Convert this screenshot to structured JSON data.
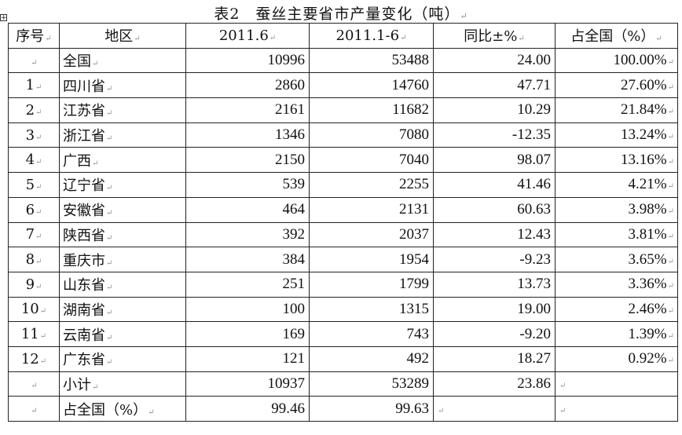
{
  "title": "表2　蚕丝主要省市产量变化（吨）",
  "table": {
    "headers": [
      "序号",
      "地区",
      "2011.6",
      "2011.1-6",
      "同比±%",
      "占全国（%）"
    ],
    "rows": [
      [
        "",
        "全国",
        "10996",
        "53488",
        "24.00",
        "100.00%"
      ],
      [
        "1",
        "四川省",
        "2860",
        "14760",
        "47.71",
        "27.60%"
      ],
      [
        "2",
        "江苏省",
        "2161",
        "11682",
        "10.29",
        "21.84%"
      ],
      [
        "3",
        "浙江省",
        "1346",
        "7080",
        "-12.35",
        "13.24%"
      ],
      [
        "4",
        "广西",
        "2150",
        "7040",
        "98.07",
        "13.16%"
      ],
      [
        "5",
        "辽宁省",
        "539",
        "2255",
        "41.46",
        "4.21%"
      ],
      [
        "6",
        "安徽省",
        "464",
        "2131",
        "60.63",
        "3.98%"
      ],
      [
        "7",
        "陕西省",
        "392",
        "2037",
        "12.43",
        "3.81%"
      ],
      [
        "8",
        "重庆市",
        "384",
        "1954",
        "-9.23",
        "3.65%"
      ],
      [
        "9",
        "山东省",
        "251",
        "1799",
        "13.73",
        "3.36%"
      ],
      [
        "10",
        "湖南省",
        "100",
        "1315",
        "19.00",
        "2.46%"
      ],
      [
        "11",
        "云南省",
        "169",
        "743",
        "-9.20",
        "1.39%"
      ],
      [
        "12",
        "广东省",
        "121",
        "492",
        "18.27",
        "0.92%"
      ],
      [
        "",
        "小计",
        "10937",
        "53289",
        "23.86",
        ""
      ],
      [
        "",
        "占全国（%）",
        "99.46",
        "99.63",
        "",
        ""
      ]
    ]
  }
}
